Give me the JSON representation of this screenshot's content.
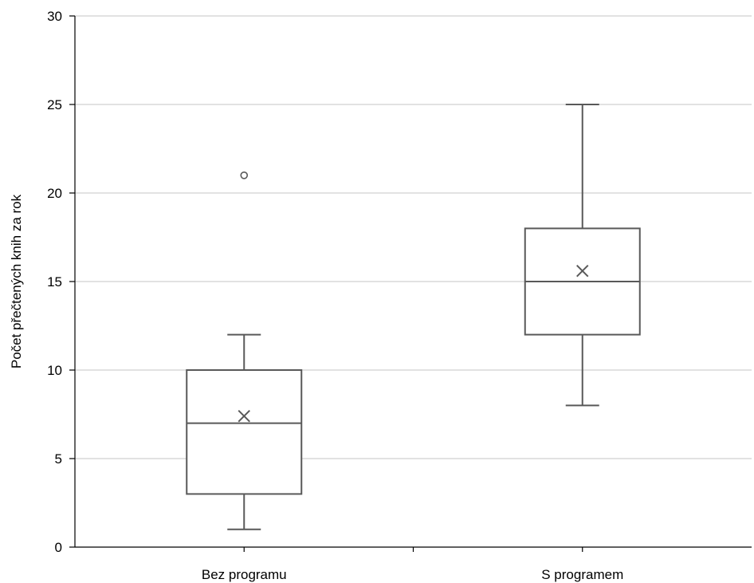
{
  "chart_data": {
    "type": "box",
    "title": "",
    "xlabel": "",
    "ylabel": "Počet přečtených knih za rok",
    "ylim": [
      0,
      30
    ],
    "yticks": [
      0,
      5,
      10,
      15,
      20,
      25,
      30
    ],
    "grid": true,
    "legend": "none",
    "categories": [
      "Bez programu",
      "S programem"
    ],
    "boxes": [
      {
        "min": 1,
        "q1": 3,
        "median": 7,
        "q3": 10,
        "max": 12,
        "mean": 7.4,
        "outliers": [
          21
        ]
      },
      {
        "min": 8,
        "q1": 12,
        "median": 15,
        "q3": 18,
        "max": 25,
        "mean": 15.6,
        "outliers": []
      }
    ],
    "colors": {
      "box": "#595959",
      "grid": "#d9d9d9",
      "axis": "#000000"
    }
  }
}
